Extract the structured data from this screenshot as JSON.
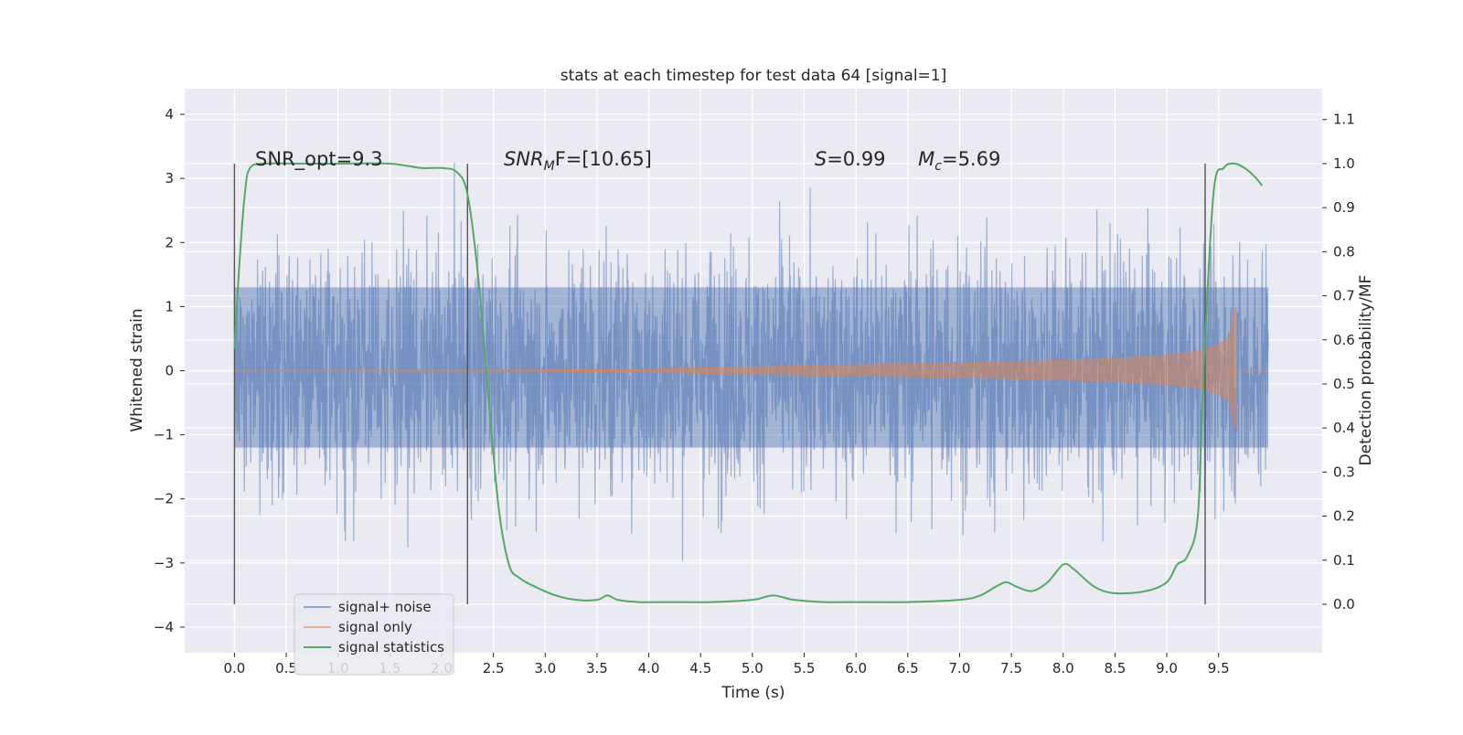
{
  "chart_data": {
    "type": "line",
    "title": "stats at each timestep for test data 64 [signal=1]",
    "xlabel": "Time (s)",
    "ylabel": "Whitened strain",
    "y2label": "Detection probability/MF",
    "xlim": [
      -0.48,
      10.5
    ],
    "ylim": [
      -4.4,
      4.4
    ],
    "y2lim": [
      -0.11,
      1.17
    ],
    "x_ticks": [
      0.0,
      0.5,
      1.0,
      1.5,
      2.0,
      2.5,
      3.0,
      3.5,
      4.0,
      4.5,
      5.0,
      5.5,
      6.0,
      6.5,
      7.0,
      7.5,
      8.0,
      8.5,
      9.0,
      9.5
    ],
    "x_tick_labels": [
      "0.0",
      "0.5",
      "1.0",
      "1.5",
      "2.0",
      "2.5",
      "3.0",
      "3.5",
      "4.0",
      "4.5",
      "5.0",
      "5.5",
      "6.0",
      "6.5",
      "7.0",
      "7.5",
      "8.0",
      "8.5",
      "9.0",
      "9.5"
    ],
    "y_ticks": [
      4,
      3,
      2,
      1,
      0,
      -1,
      -2,
      -3,
      -4
    ],
    "y_tick_labels": [
      "4",
      "3",
      "2",
      "1",
      "0",
      "−1",
      "−2",
      "−3",
      "−4"
    ],
    "y2_ticks": [
      1.1,
      1.0,
      0.9,
      0.8,
      0.7,
      0.6,
      0.5,
      0.4,
      0.3,
      0.2,
      0.1,
      0.0
    ],
    "y2_tick_labels": [
      "1.1",
      "1.0",
      "0.9",
      "0.8",
      "0.7",
      "0.6",
      "0.5",
      "0.4",
      "0.3",
      "0.2",
      "0.1",
      "0.0"
    ],
    "grid": true,
    "legend_position": "lower-left",
    "background": "#eaeaf2",
    "series": [
      {
        "name": "signal+ noise",
        "color": "#4c72b0",
        "opacity": 0.5,
        "axis": "left",
        "x_range": [
          0.0,
          9.98
        ],
        "band": [
          -1.2,
          1.3
        ],
        "spike_max": 4.05,
        "spike_min": -3.95
      },
      {
        "name": "signal only",
        "color": "#dd8452",
        "opacity": 0.5,
        "axis": "left",
        "envelope": {
          "x": [
            0.0,
            3.0,
            4.0,
            5.0,
            6.0,
            7.0,
            8.0,
            8.5,
            9.0,
            9.3,
            9.5,
            9.6,
            9.65,
            9.67
          ],
          "amplitude": [
            0.0,
            0.01,
            0.03,
            0.06,
            0.09,
            0.12,
            0.16,
            0.19,
            0.24,
            0.3,
            0.4,
            0.52,
            0.9,
            1.0
          ]
        }
      },
      {
        "name": "signal statistics",
        "color": "#55a868",
        "axis": "right",
        "x": [
          0.0,
          0.05,
          0.1,
          0.15,
          0.3,
          0.6,
          1.0,
          1.5,
          1.8,
          2.0,
          2.15,
          2.25,
          2.35,
          2.45,
          2.55,
          2.65,
          2.75,
          2.9,
          3.1,
          3.3,
          3.5,
          3.6,
          3.7,
          3.9,
          4.2,
          4.6,
          5.0,
          5.2,
          5.4,
          5.7,
          6.0,
          6.5,
          7.0,
          7.2,
          7.35,
          7.45,
          7.55,
          7.7,
          7.85,
          8.0,
          8.1,
          8.3,
          8.5,
          8.8,
          9.0,
          9.1,
          9.2,
          9.3,
          9.35,
          9.45,
          9.55,
          9.65,
          9.75,
          9.85,
          9.92
        ],
        "y": [
          0.58,
          0.78,
          0.93,
          0.99,
          1.0,
          1.0,
          1.0,
          1.0,
          0.99,
          0.99,
          0.98,
          0.93,
          0.75,
          0.48,
          0.22,
          0.09,
          0.06,
          0.04,
          0.02,
          0.01,
          0.01,
          0.02,
          0.01,
          0.005,
          0.005,
          0.005,
          0.01,
          0.02,
          0.01,
          0.005,
          0.005,
          0.005,
          0.01,
          0.02,
          0.04,
          0.05,
          0.04,
          0.03,
          0.05,
          0.09,
          0.08,
          0.04,
          0.025,
          0.03,
          0.05,
          0.09,
          0.11,
          0.2,
          0.5,
          0.93,
          0.99,
          1.0,
          0.99,
          0.97,
          0.95
        ]
      }
    ],
    "vertical_lines": [
      0.0,
      2.25,
      9.37
    ],
    "vline_range_y2": [
      0.0,
      1.0
    ],
    "annotations": [
      {
        "x": 0.2,
        "y": 3.2,
        "text": "SNR_opt=9.3"
      },
      {
        "x": 2.6,
        "y": 3.2,
        "text": "SNR",
        "sub": "M",
        "text_after": "F=[10.65]"
      },
      {
        "x": 5.6,
        "y": 3.2,
        "text": "S",
        "text_after": "=0.99"
      },
      {
        "x": 6.6,
        "y": 3.2,
        "text": "M",
        "sub": "c",
        "text_after": "=5.69"
      }
    ]
  }
}
